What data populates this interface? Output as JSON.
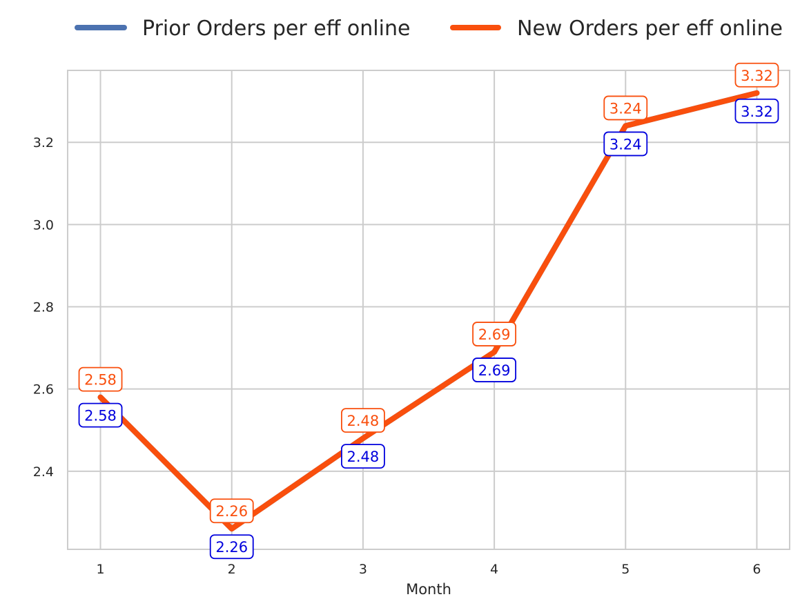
{
  "chart_data": {
    "type": "line",
    "xlabel": "Month",
    "ylabel": "",
    "x": [
      1,
      2,
      3,
      4,
      5,
      6
    ],
    "xlim": [
      0.75,
      6.25
    ],
    "ylim": [
      2.21,
      3.375
    ],
    "yticks": [
      2.4,
      2.6,
      2.8,
      3.0,
      3.2
    ],
    "ytick_labels": [
      "2.4",
      "2.6",
      "2.8",
      "3.0",
      "3.2"
    ],
    "xtick_labels": [
      "1",
      "2",
      "3",
      "4",
      "5",
      "6"
    ],
    "grid": true,
    "legend_position": "top-center",
    "series": [
      {
        "name": "Prior Orders per eff online",
        "color": "#4c72b0",
        "label_color": "#0000dd",
        "values": [
          2.58,
          2.26,
          2.48,
          2.69,
          3.24,
          3.32
        ],
        "labels": [
          "2.58",
          "2.26",
          "2.48",
          "2.69",
          "3.24",
          "3.32"
        ]
      },
      {
        "name": "New Orders per eff online",
        "color": "#f94f0d",
        "label_color": "#f94f0d",
        "values": [
          2.58,
          2.26,
          2.48,
          2.69,
          3.24,
          3.32
        ],
        "labels": [
          "2.58",
          "2.26",
          "2.48",
          "2.69",
          "3.24",
          "3.32"
        ]
      }
    ]
  }
}
